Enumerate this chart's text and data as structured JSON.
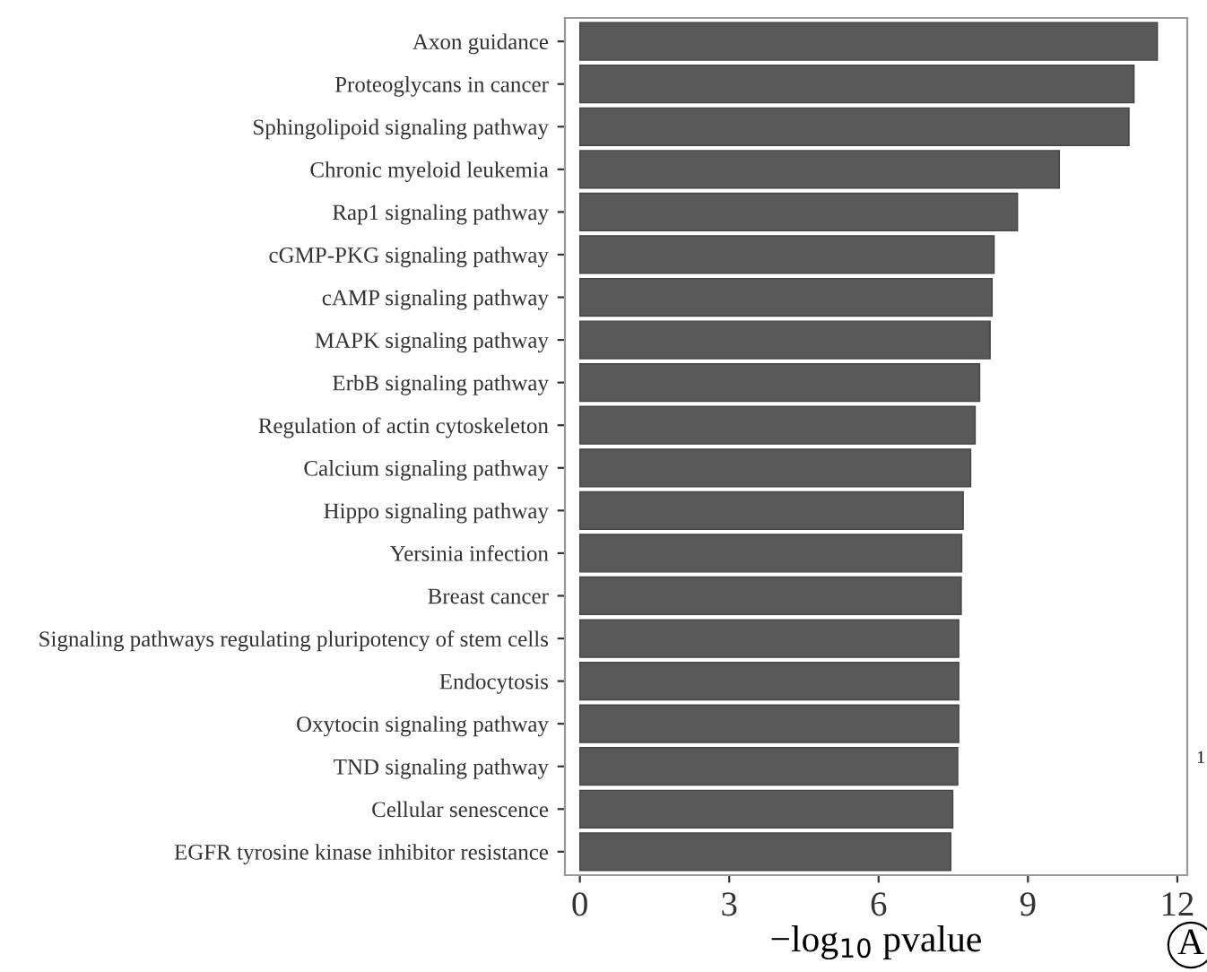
{
  "chart_data": {
    "type": "bar",
    "orientation": "horizontal",
    "xlabel": "−log$_{10}$ pvalue",
    "categories": [
      "Axon guidance",
      "Proteoglycans in cancer",
      "Sphingolipoid signaling pathway",
      "Chronic myeloid leukemia",
      "Rap1 signaling pathway",
      "cGMP-PKG signaling pathway",
      "cAMP signaling pathway",
      "MAPK signaling pathway",
      "ErbB signaling pathway",
      "Regulation of actin cytoskeleton",
      "Calcium signaling pathway",
      "Hippo signaling pathway",
      "Yersinia infection",
      "Breast cancer",
      "Signaling pathways regulating pluripotency of stem cells",
      "Endocytosis",
      "Oxytocin signaling pathway",
      "TND signaling pathway",
      "Cellular senescence",
      "EGFR tyrosine kinase inhibitor resistance"
    ],
    "values": [
      11.6,
      11.13,
      11.03,
      9.63,
      8.79,
      8.32,
      8.28,
      8.24,
      8.03,
      7.94,
      7.85,
      7.7,
      7.67,
      7.66,
      7.61,
      7.61,
      7.61,
      7.59,
      7.49,
      7.45
    ],
    "color": "#595959",
    "xlim": [
      -0.3,
      12.2
    ],
    "xticks": [
      0,
      3,
      6,
      9,
      12
    ],
    "grid": false,
    "annotations": [
      "A",
      "1"
    ]
  }
}
